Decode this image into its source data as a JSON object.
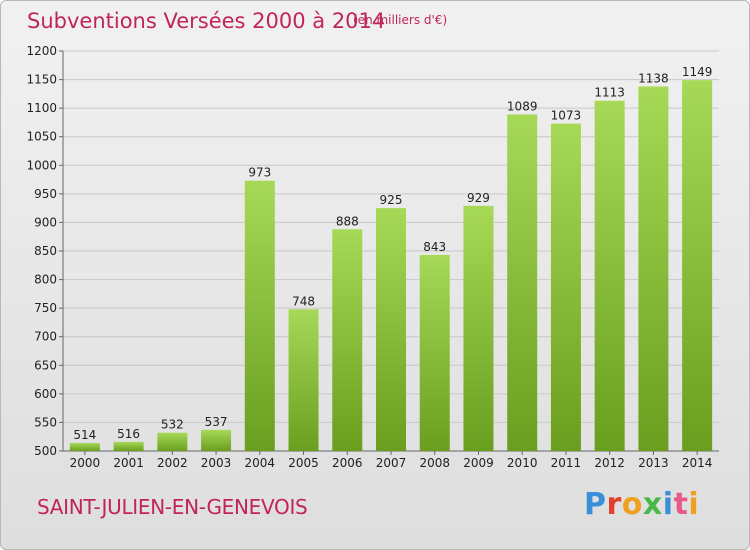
{
  "header": {
    "title": "Subventions Versées 2000 à 2014",
    "subtitle": "(en milliers d'€)"
  },
  "footer": {
    "town": "SAINT-JULIEN-EN-GENEVOIS",
    "logo": "Proxiti"
  },
  "colors": {
    "title": "#c0245b",
    "bar_light": "#a6d957",
    "bar_dark": "#6a9e1f",
    "grid": "#c8c8c8"
  },
  "chart_data": {
    "type": "bar",
    "title": "Subventions Versées 2000 à 2014",
    "subtitle": "(en milliers d'€)",
    "categories": [
      "2000",
      "2001",
      "2002",
      "2003",
      "2004",
      "2005",
      "2006",
      "2007",
      "2008",
      "2009",
      "2010",
      "2011",
      "2012",
      "2013",
      "2014"
    ],
    "values": [
      514,
      516,
      532,
      537,
      973,
      748,
      888,
      925,
      843,
      929,
      1089,
      1073,
      1113,
      1138,
      1149
    ],
    "ylim": [
      500,
      1200
    ],
    "yticks": [
      500,
      550,
      600,
      650,
      700,
      750,
      800,
      850,
      900,
      950,
      1000,
      1050,
      1100,
      1150,
      1200
    ],
    "grid": true,
    "data_labels": true
  }
}
